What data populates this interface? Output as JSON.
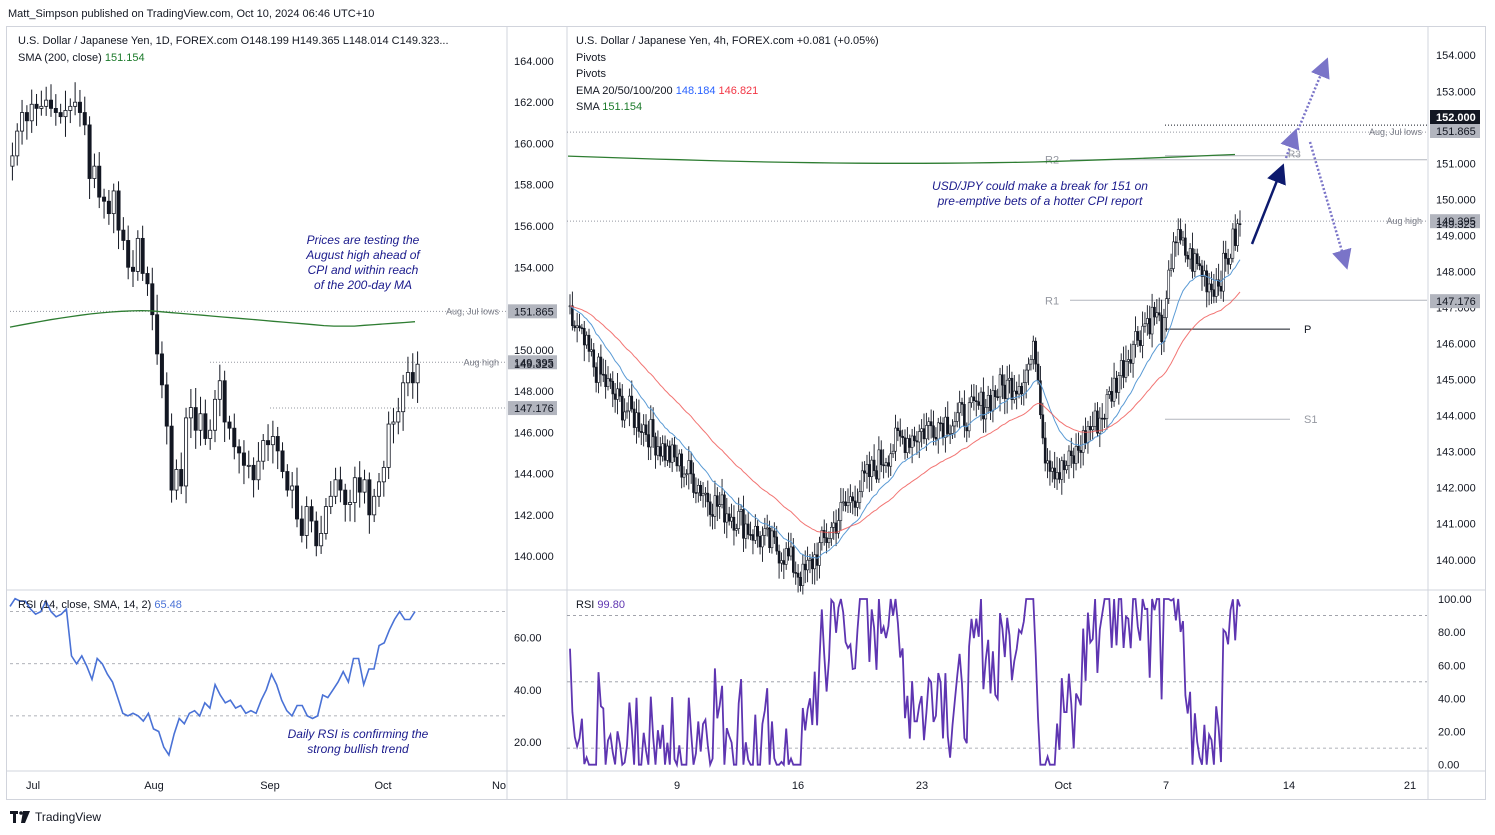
{
  "publisher": "Matt_Simpson published on TradingView.com, Oct 10, 2024 06:46 UTC+10",
  "brand": "TradingView",
  "left_panel": {
    "title": "U.S. Dollar / Japanese Yen, 1D, FOREX.com",
    "ohlc": "O148.199  H149.365  L148.014  C149.323...",
    "sma_label": "SMA (200, close)",
    "sma_value": "151.154",
    "rsi_label": "RSI (14, close, SMA, 14, 2)",
    "rsi_value": "65.48",
    "annotation_top": [
      "Prices are testing the",
      "August high ahead of",
      "CPI and within reach",
      "of the 200-day MA"
    ],
    "annotation_bottom": [
      "Daily RSI is confirming the",
      "strong bullish trend"
    ],
    "level_labels": {
      "aug_jul_lows": "Aug, Jul lows",
      "aug_high": "Aug high"
    }
  },
  "right_panel": {
    "title": "U.S. Dollar / Japanese Yen, 4h, FOREX.com",
    "change": "+0.081 (+0.05%)",
    "pivots1": "Pivots",
    "pivots2": "Pivots",
    "ema_label": "EMA 20/50/100/200",
    "ema_val1": "148.184",
    "ema_val2": "146.821",
    "sma_label": "SMA",
    "sma_value": "151.154",
    "rsi_label": "RSI",
    "rsi_value": "99.80",
    "annotation": [
      "USD/JPY could make a break for 151 on",
      "pre-emptive bets of a hotter CPI report"
    ],
    "pivot_labels": {
      "r2": "R2",
      "r1": "R1",
      "p": "P",
      "s1": "S1",
      "r3": "R3"
    },
    "level_labels": {
      "aug_jul_lows": "Aug, Jul lows",
      "aug_high": "Aug high"
    }
  },
  "colors": {
    "up": "#131722",
    "down": "#131722",
    "sma": "#2e7d32",
    "ema_fast": "#5b9bd5",
    "ema_slow": "#ef5350",
    "rsi": "#5e35b1",
    "rsi_left": "#4a72d6",
    "annot": "#1a1a8c",
    "arrow_dark": "#0d1a6e",
    "arrow_dotted": "#7a74c8"
  },
  "chart_data": [
    {
      "type": "candlestick",
      "timeframe": "1D",
      "x_ticks": [
        "Jul",
        "Aug",
        "Sep",
        "Oct",
        "No"
      ],
      "y_ticks": [
        "164.000",
        "162.000",
        "160.000",
        "158.000",
        "156.000",
        "154.000",
        "152.000",
        "150.000",
        "148.000",
        "146.000",
        "144.000",
        "142.000",
        "140.000"
      ],
      "ylim": [
        138.6,
        165.5
      ],
      "price_labels": [
        {
          "value": 151.865,
          "text": "151.865",
          "style": "grey"
        },
        {
          "value": 149.395,
          "text": "149.395",
          "style": "grey"
        },
        {
          "value": 149.323,
          "text": "149.323",
          "style": "plain"
        },
        {
          "value": 147.176,
          "text": "147.176",
          "style": "grey"
        }
      ],
      "levels": {
        "aug_jul_lows": 151.865,
        "aug_high": 149.395,
        "level_147": 147.176
      },
      "close": [
        159.4,
        160.6,
        161.5,
        161.1,
        161.9,
        161.7,
        161.8,
        162.1,
        161.7,
        161.5,
        161.3,
        161.6,
        161.8,
        162.0,
        161.5,
        160.9,
        158.3,
        158.9,
        157.4,
        157.2,
        156.6,
        157.7,
        155.8,
        155.3,
        154.0,
        153.8,
        155.4,
        153.7,
        153.2,
        151.7,
        149.8,
        148.3,
        146.3,
        143.2,
        144.2,
        143.4,
        146.7,
        147.2,
        146.1,
        146.9,
        145.7,
        146.1,
        147.6,
        148.5,
        146.5,
        146.2,
        145.3,
        145.0,
        144.4,
        144.4,
        143.7,
        144.6,
        145.6,
        145.4,
        145.8,
        145.1,
        144.1,
        143.2,
        143.4,
        141.8,
        141.0,
        142.4,
        141.7,
        140.5,
        141.1,
        142.4,
        142.9,
        143.7,
        143.2,
        142.5,
        142.6,
        143.8,
        143.1,
        143.7,
        142.0,
        142.9,
        143.6,
        144.3,
        146.4,
        146.5,
        147.0,
        148.4,
        148.9,
        148.4,
        149.3
      ]
    },
    {
      "type": "line",
      "name": "SMA (200, close)",
      "y_start": 151.1,
      "y_peak": 151.9,
      "y_end": 151.15
    },
    {
      "type": "line",
      "name": "RSI (14, close, SMA, 14, 2)",
      "y_ticks": [
        "60.00",
        "40.00",
        "20.00"
      ],
      "ylim": [
        10,
        76
      ],
      "levels": [
        70,
        50,
        30
      ],
      "values": [
        72,
        75,
        74,
        74,
        71,
        69,
        70,
        74,
        70,
        68,
        69,
        71,
        53,
        50,
        53,
        49,
        44,
        52,
        50,
        46,
        43,
        37,
        31,
        30,
        31,
        30,
        28,
        31,
        25,
        24,
        18,
        15,
        23,
        29,
        27,
        31,
        32,
        30,
        35,
        33,
        42,
        38,
        35,
        36,
        33,
        34,
        31,
        32,
        31,
        36,
        40,
        46,
        42,
        36,
        32,
        30,
        34,
        34,
        30,
        29,
        30,
        38,
        37,
        40,
        43,
        47,
        43,
        52,
        52,
        42,
        48,
        48,
        57,
        58,
        63,
        67,
        70,
        67,
        67,
        70
      ]
    },
    {
      "type": "candlestick",
      "timeframe": "4h",
      "x_ticks": [
        "9",
        "16",
        "23",
        "Oct",
        "7",
        "14",
        "21"
      ],
      "y_ticks": [
        "154.000",
        "153.000",
        "152.000",
        "151.000",
        "150.000",
        "149.000",
        "148.000",
        "147.000",
        "146.000",
        "145.000",
        "144.000",
        "143.000",
        "142.000",
        "141.000",
        "140.000"
      ],
      "ylim": [
        139.3,
        154.7
      ],
      "price_labels": [
        {
          "value": 152.0,
          "text": "152.000",
          "style": "black"
        },
        {
          "value": 151.865,
          "text": "151.865",
          "style": "grey"
        },
        {
          "value": 149.395,
          "text": "149.395",
          "style": "grey"
        },
        {
          "value": 149.323,
          "text": "149.323",
          "style": "plain"
        },
        {
          "value": 147.176,
          "text": "147.176",
          "style": "grey"
        }
      ],
      "pivots": {
        "R2": 151.1,
        "R1": 147.2,
        "P": 146.4,
        "S1": 143.9
      },
      "levels": {
        "aug_jul_lows": 151.865,
        "aug_high": 149.395
      },
      "segments": [
        [
          0,
          146.7
        ],
        [
          10,
          145.4
        ],
        [
          20,
          144.4
        ],
        [
          30,
          143.8
        ],
        [
          40,
          143.0
        ],
        [
          50,
          142.4
        ],
        [
          60,
          141.6
        ],
        [
          70,
          141.2
        ],
        [
          80,
          140.6
        ],
        [
          90,
          140.2
        ],
        [
          98,
          139.5
        ],
        [
          106,
          140.4
        ],
        [
          114,
          141.3
        ],
        [
          122,
          142.0
        ],
        [
          130,
          142.7
        ],
        [
          138,
          143.3
        ],
        [
          146,
          143.5
        ],
        [
          154,
          143.8
        ],
        [
          162,
          143.9
        ],
        [
          170,
          144.1
        ],
        [
          180,
          144.7
        ],
        [
          190,
          145.0
        ],
        [
          196,
          145.8
        ],
        [
          200,
          143.0
        ],
        [
          206,
          142.4
        ],
        [
          212,
          142.8
        ],
        [
          218,
          143.6
        ],
        [
          224,
          144.0
        ],
        [
          230,
          145.0
        ],
        [
          236,
          145.9
        ],
        [
          242,
          146.6
        ],
        [
          246,
          146.8
        ],
        [
          250,
          146.3
        ],
        [
          254,
          149.0
        ],
        [
          258,
          148.6
        ],
        [
          262,
          148.3
        ],
        [
          266,
          148.0
        ],
        [
          270,
          147.6
        ],
        [
          274,
          147.9
        ],
        [
          278,
          148.6
        ],
        [
          282,
          149.3
        ]
      ],
      "ema_fast": {
        "start": 145.7,
        "low": 141.0,
        "end": 148.184
      },
      "ema_slow": {
        "start": 145.9,
        "low": 142.1,
        "end": 146.821
      },
      "sma200": {
        "start": 151.2,
        "end": 151.154
      }
    },
    {
      "type": "line",
      "name": "RSI",
      "y_ticks": [
        "100.00",
        "80.00",
        "60.00",
        "40.00",
        "20.00",
        "0.00"
      ],
      "ylim": [
        -2,
        103
      ],
      "levels": [
        90,
        50,
        10
      ]
    }
  ]
}
